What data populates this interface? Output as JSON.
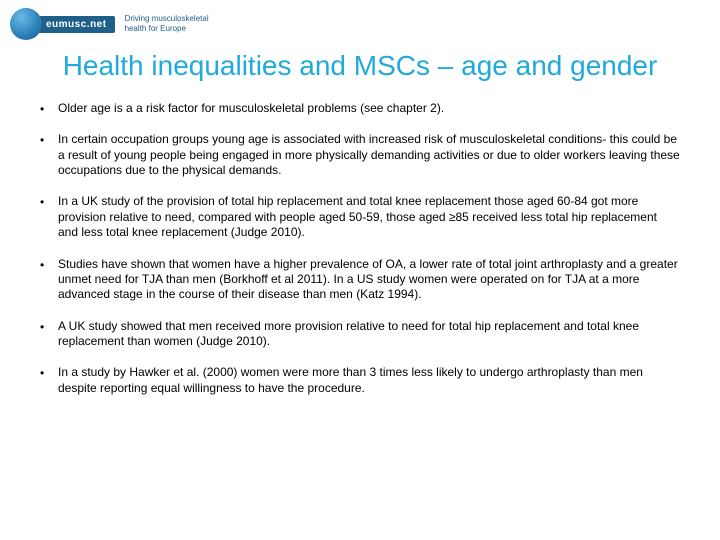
{
  "logo": {
    "brand": "eumusc.net",
    "tagline_line1": "Driving musculoskeletal",
    "tagline_line2": "health for Europe"
  },
  "title": "Health inequalities and MSCs – age and gender",
  "bullets": [
    "Older age is a a risk factor for musculoskeletal problems (see chapter 2).",
    "In certain occupation groups young age is associated with increased risk of musculoskeletal conditions- this could be a result of young people being engaged in more physically demanding activities or  due to older workers leaving these occupations due to the physical demands.",
    "In a UK study of the provision of total hip replacement and total knee replacement those aged 60-84 got more provision relative to need, compared with people aged 50-59, those aged ≥85 received less total hip replacement and less total knee replacement (Judge 2010).",
    "Studies have shown that women have a higher prevalence of OA, a lower rate of total joint arthroplasty and a greater unmet need for TJA than men (Borkhoff et al 2011). In a US study women were operated on for TJA at a more advanced stage in the course of their disease than men (Katz 1994).",
    "A UK study showed that men received more provision relative to need for total hip replacement and total knee replacement than women (Judge 2010).",
    "In a study by  Hawker et al. (2000) women were more than 3 times less likely to undergo arthroplasty than men despite reporting equal willingness to have the procedure."
  ],
  "colors": {
    "title_color": "#1faadb",
    "logo_bg": "#1f5f8b",
    "body_text": "#000000",
    "background": "#ffffff"
  },
  "typography": {
    "title_fontsize": 28,
    "body_fontsize": 12,
    "title_font": "Trebuchet MS"
  }
}
